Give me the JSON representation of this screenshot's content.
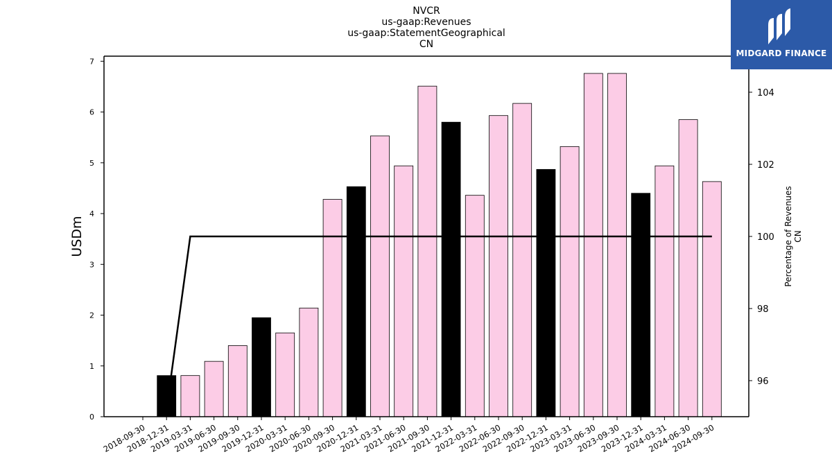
{
  "chart_data": {
    "type": "bar",
    "title_lines": [
      "NVCR",
      "us-gaap:Revenues",
      "us-gaap:StatementGeographical",
      "CN"
    ],
    "ylabel": "USDm",
    "y2label_lines": [
      "Percentage of Revenues",
      "CN"
    ],
    "ylim": [
      0,
      7.1
    ],
    "y2lim": [
      95,
      105
    ],
    "yticks": [
      0,
      1,
      2,
      3,
      4,
      5,
      6,
      7
    ],
    "y2ticks": [
      96,
      98,
      100,
      102,
      104
    ],
    "categories": [
      "2018-09-30",
      "2018-12-31",
      "2019-03-31",
      "2019-06-30",
      "2019-09-30",
      "2019-12-31",
      "2020-03-31",
      "2020-06-30",
      "2020-09-30",
      "2020-12-31",
      "2021-03-31",
      "2021-06-30",
      "2021-09-30",
      "2021-12-31",
      "2022-03-31",
      "2022-06-30",
      "2022-09-30",
      "2022-12-31",
      "2023-03-31",
      "2023-06-30",
      "2023-09-30",
      "2023-12-31",
      "2024-03-31",
      "2024-06-30",
      "2024-09-30"
    ],
    "values": [
      null,
      0.81,
      0.81,
      1.09,
      1.4,
      1.95,
      1.65,
      2.14,
      4.28,
      4.53,
      5.53,
      4.94,
      6.51,
      5.8,
      4.36,
      5.93,
      6.17,
      4.87,
      5.32,
      6.76,
      6.76,
      4.4,
      4.94,
      5.85,
      4.63
    ],
    "highlight": [
      false,
      true,
      false,
      false,
      false,
      true,
      false,
      false,
      false,
      true,
      false,
      false,
      false,
      true,
      false,
      false,
      false,
      true,
      false,
      false,
      false,
      true,
      false,
      false,
      false
    ],
    "line_series": {
      "values": [
        null,
        95.2,
        100,
        100,
        100,
        100,
        100,
        100,
        100,
        100,
        100,
        100,
        100,
        100,
        100,
        100,
        100,
        100,
        100,
        100,
        100,
        100,
        100,
        100,
        100
      ]
    },
    "colors": {
      "bar": "#fccce6",
      "highlight": "#000000",
      "line": "#000000"
    }
  },
  "logo": {
    "text": "MIDGARD FINANCE",
    "background": "#2c5aa8"
  }
}
